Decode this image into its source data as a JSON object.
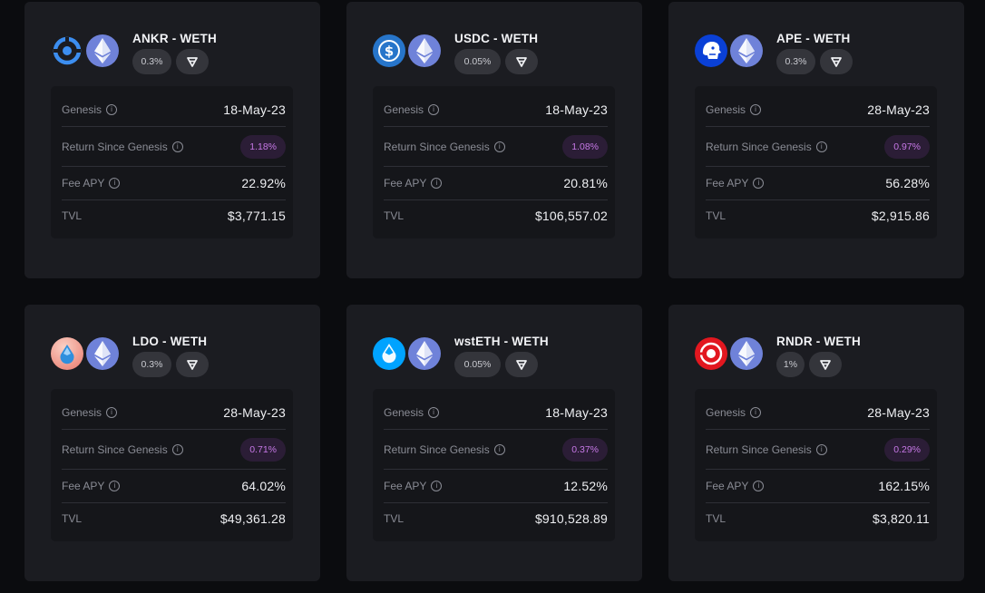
{
  "labels": {
    "genesis": "Genesis",
    "return_since_genesis": "Return Since Genesis",
    "fee_apy": "Fee APY",
    "tvl": "TVL"
  },
  "colors": {
    "background": "#0b0c0f",
    "card": "#1b1c21",
    "stats_panel": "#15161a",
    "return_badge_text": "#c678e6",
    "eth_icon": "#6f82d9"
  },
  "cards": [
    {
      "pair": "ANKR - WETH",
      "fee_tier": "0.3%",
      "genesis": "18-May-23",
      "return": "1.18%",
      "fee_apy": "22.92%",
      "tvl": "$3,771.15",
      "token_icon": "ankr-icon"
    },
    {
      "pair": "USDC - WETH",
      "fee_tier": "0.05%",
      "genesis": "18-May-23",
      "return": "1.08%",
      "fee_apy": "20.81%",
      "tvl": "$106,557.02",
      "token_icon": "usdc-icon"
    },
    {
      "pair": "APE - WETH",
      "fee_tier": "0.3%",
      "genesis": "28-May-23",
      "return": "0.97%",
      "fee_apy": "56.28%",
      "tvl": "$2,915.86",
      "token_icon": "ape-icon"
    },
    {
      "pair": "LDO - WETH",
      "fee_tier": "0.3%",
      "genesis": "28-May-23",
      "return": "0.71%",
      "fee_apy": "64.02%",
      "tvl": "$49,361.28",
      "token_icon": "ldo-icon"
    },
    {
      "pair": "wstETH - WETH",
      "fee_tier": "0.05%",
      "genesis": "18-May-23",
      "return": "0.37%",
      "fee_apy": "12.52%",
      "tvl": "$910,528.89",
      "token_icon": "wsteth-icon"
    },
    {
      "pair": "RNDR - WETH",
      "fee_tier": "1%",
      "genesis": "28-May-23",
      "return": "0.29%",
      "fee_apy": "162.15%",
      "tvl": "$3,820.11",
      "token_icon": "rndr-icon"
    }
  ]
}
